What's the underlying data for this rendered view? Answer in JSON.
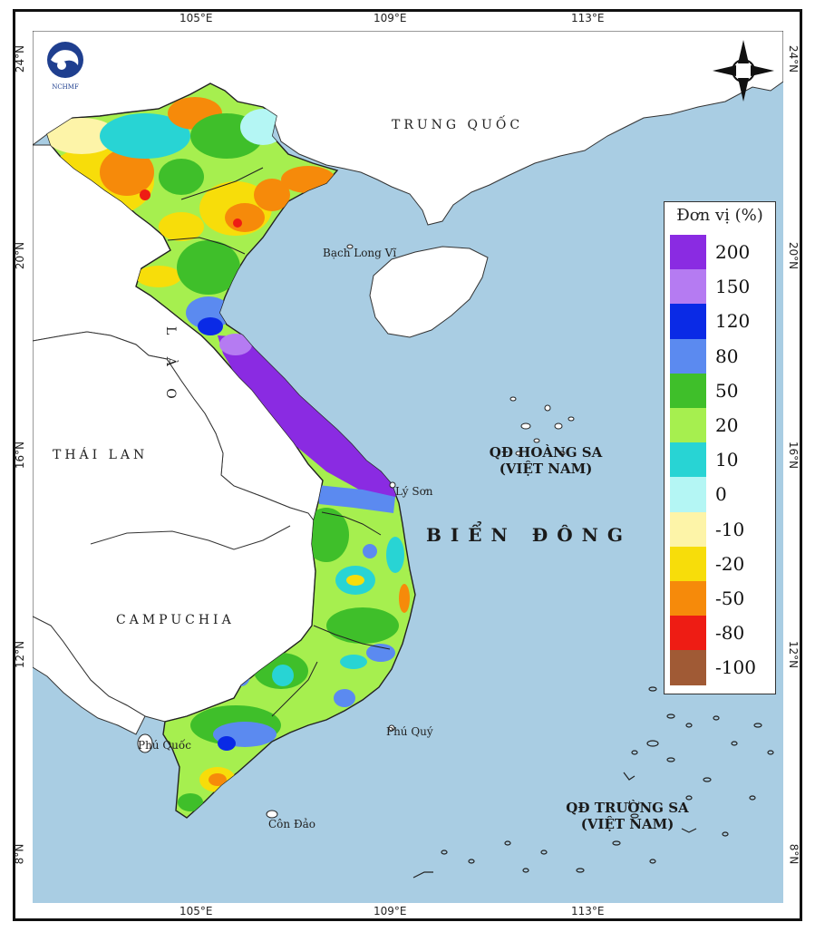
{
  "map": {
    "lon_ticks_top": [
      "105°E",
      "109°E",
      "113°E"
    ],
    "lon_ticks_bottom": [
      "105°E",
      "109°E",
      "113°E"
    ],
    "lat_ticks_left": [
      "24°N",
      "20°N",
      "16°N",
      "12°N",
      "8°N"
    ],
    "lat_ticks_right": [
      "24°N",
      "20°N",
      "16°N",
      "12°N",
      "8°N"
    ],
    "countries": {
      "china": "TRUNG QUỐC",
      "laos": "L À O",
      "thailand": "THÁI LAN",
      "cambodia": "CAMPUCHIA"
    },
    "islands": {
      "bach_long_vi": "Bạch Long Vĩ",
      "ly_son": "Lý Sơn",
      "phu_quy": "Phú Quý",
      "phu_quoc": "Phú Quốc",
      "con_dao": "Côn Đảo"
    },
    "sea": "BIỂN ĐÔNG",
    "paracel": {
      "line1": "QĐ HOÀNG SA",
      "line2": "(VIỆT NAM)"
    },
    "spratly": {
      "line1": "QĐ TRƯỜNG SA",
      "line2": "(VIỆT NAM)"
    },
    "logo_text": "NCHMF"
  },
  "legend": {
    "title": "Đơn vị (%)",
    "items": [
      {
        "label": "200",
        "color": "#8a2be2"
      },
      {
        "label": "150",
        "color": "#b57bf2"
      },
      {
        "label": "120",
        "color": "#0a2ae6"
      },
      {
        "label": "80",
        "color": "#5b8af0"
      },
      {
        "label": "50",
        "color": "#3fbf2a"
      },
      {
        "label": "20",
        "color": "#a6ef4f"
      },
      {
        "label": "10",
        "color": "#28d4d4"
      },
      {
        "label": "0",
        "color": "#b4f6f4"
      },
      {
        "label": "-10",
        "color": "#fdf4a8"
      },
      {
        "label": "-20",
        "color": "#f7dd0a"
      },
      {
        "label": "-50",
        "color": "#f68a0a"
      },
      {
        "label": "-80",
        "color": "#ee1c14"
      },
      {
        "label": "-100",
        "color": "#a05a35"
      }
    ]
  },
  "colors": {
    "ocean": "#a9cde3",
    "land": "#ffffff",
    "border": "#222222"
  }
}
